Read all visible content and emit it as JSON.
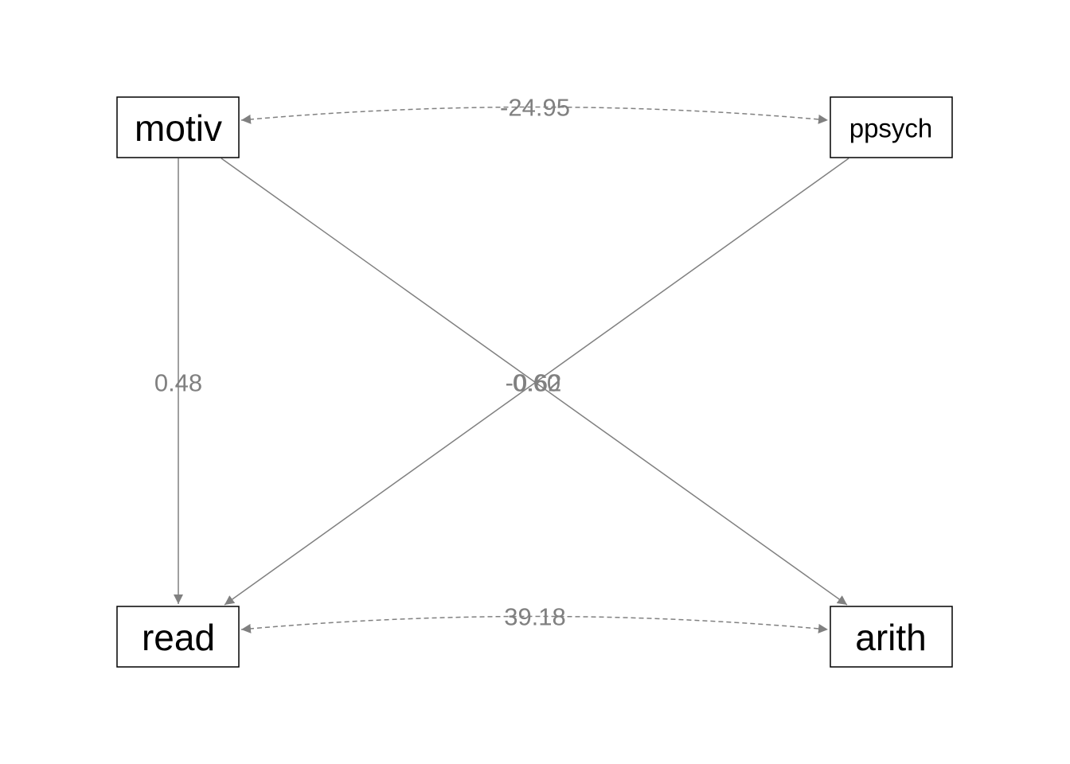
{
  "colors": {
    "edge": "#808080",
    "node_border": "#000000",
    "node_text": "#000000"
  },
  "nodes": {
    "motiv": "motiv",
    "ppsych": "ppsych",
    "read": "read",
    "arith": "arith"
  },
  "edges": {
    "motiv_read": "0.48",
    "motiv_arith": "0.60",
    "ppsych_read": "-0.62",
    "motiv_ppsych_cov": "-24.95",
    "read_arith_cov": "39.18"
  }
}
